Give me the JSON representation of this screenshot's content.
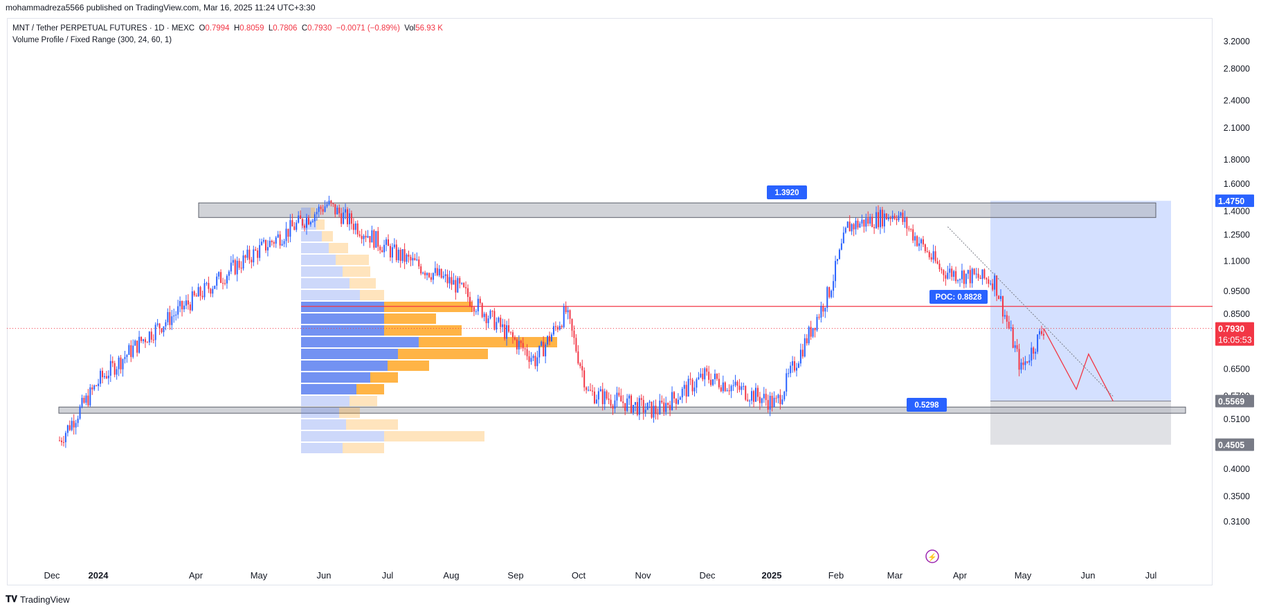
{
  "header": {
    "published": "mohammadreza5566 published on TradingView.com, Mar 16, 2025 11:24 UTC+3:30"
  },
  "symbol_info": {
    "title": "MNT / Tether PERPETUAL FUTURES · 1D · MEXC",
    "open_label": "O",
    "open": "0.7994",
    "high_label": "H",
    "high": "0.8059",
    "low_label": "L",
    "low": "0.7806",
    "close_label": "C",
    "close": "0.7930",
    "change": "−0.0071 (−0.89%)",
    "vol_label": "Vol",
    "vol": "56.93 K",
    "indicator": "Volume Profile / Fixed Range (300, 24, 60, 1)"
  },
  "footer": {
    "brand": "TradingView"
  },
  "colors": {
    "up": "#2962ff",
    "down": "#f23645",
    "zone": "#b2b5be",
    "vp_up": "#5b7ff0",
    "vp_down": "#ffa726",
    "target": "#2962ff",
    "stop": "#b2b5be"
  },
  "chart_data": {
    "type": "candlestick",
    "scale": "log",
    "ylim": [
      0.28,
      3.4
    ],
    "y_ticks": [
      "3.2000",
      "2.8000",
      "2.4000",
      "2.1000",
      "1.8000",
      "1.6000",
      "1.4000",
      "1.2500",
      "1.1000",
      "0.9500",
      "0.8500",
      "0.6500",
      "0.5700",
      "0.5100",
      "0.4000",
      "0.3500",
      "0.3100"
    ],
    "x_ticks": [
      "Dec",
      "2024",
      "Apr",
      "May",
      "Jun",
      "Jul",
      "Aug",
      "Sep",
      "Oct",
      "Nov",
      "Dec",
      "2025",
      "Feb",
      "Mar",
      "Apr",
      "May",
      "Jun",
      "Jul"
    ],
    "price_labels": [
      {
        "value": "1.4750",
        "kind": "target"
      },
      {
        "value": "0.7930",
        "kind": "last",
        "countdown": "16:05:53"
      },
      {
        "value": "0.5569",
        "kind": "entry"
      },
      {
        "value": "0.4505",
        "kind": "stop"
      }
    ],
    "annotations": [
      {
        "text": "1.3920",
        "price": 1.392,
        "kind": "high"
      },
      {
        "text": "0.5298",
        "price": 0.5298,
        "kind": "low"
      },
      {
        "text": "POC: 0.8828",
        "price": 0.8828,
        "kind": "poc"
      }
    ],
    "zones": [
      {
        "name": "resistance",
        "from": 1.36,
        "to": 1.46
      },
      {
        "name": "support",
        "from": 0.525,
        "to": 0.541
      }
    ],
    "key_points": [
      {
        "date": "2023-11-20",
        "close": 0.46
      },
      {
        "date": "2023-12-10",
        "close": 0.62
      },
      {
        "date": "2024-01-01",
        "close": 0.76
      },
      {
        "date": "2024-02-15",
        "close": 1.08
      },
      {
        "date": "2024-03-30",
        "close": 1.45
      },
      {
        "date": "2024-05-01",
        "close": 1.15
      },
      {
        "date": "2024-06-01",
        "close": 0.98
      },
      {
        "date": "2024-07-10",
        "close": 0.68
      },
      {
        "date": "2024-07-25",
        "close": 0.86
      },
      {
        "date": "2024-08-05",
        "close": 0.58
      },
      {
        "date": "2024-09-07",
        "close": 0.53
      },
      {
        "date": "2024-10-01",
        "close": 0.63
      },
      {
        "date": "2024-11-05",
        "close": 0.55
      },
      {
        "date": "2024-12-01",
        "close": 0.95
      },
      {
        "date": "2024-12-10",
        "close": 1.3
      },
      {
        "date": "2025-01-03",
        "close": 1.39
      },
      {
        "date": "2025-01-25",
        "close": 1.05
      },
      {
        "date": "2025-02-20",
        "close": 1.0
      },
      {
        "date": "2025-03-05",
        "close": 0.65
      },
      {
        "date": "2025-03-16",
        "close": 0.793
      }
    ],
    "projection": [
      {
        "date": "2025-04-01",
        "price": 0.59
      },
      {
        "date": "2025-04-07",
        "price": 0.7
      },
      {
        "date": "2025-04-19",
        "price": 0.5569
      }
    ]
  }
}
